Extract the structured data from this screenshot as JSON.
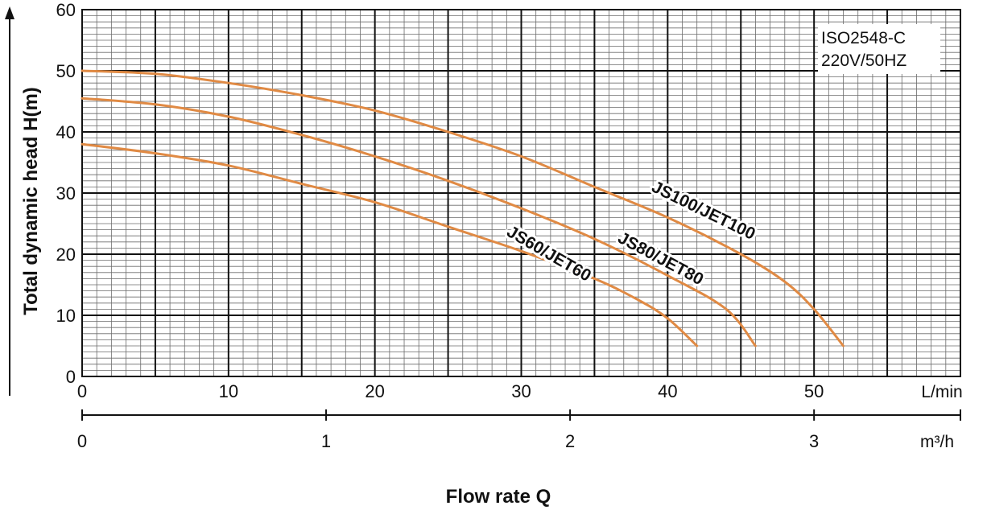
{
  "chart_data": {
    "type": "line",
    "note_lines": [
      "ISO2548-C",
      "220V/50HZ"
    ],
    "ylabel": "Total dynamic head H(m)",
    "xlabel": "Flow rate Q",
    "x_unit": "L/min",
    "x2_unit": "m³/h",
    "xlim": [
      0,
      60
    ],
    "ylim": [
      0,
      60
    ],
    "grid": true,
    "x_ticks": [
      0,
      10,
      20,
      30,
      40,
      50
    ],
    "y_ticks": [
      0,
      10,
      20,
      30,
      40,
      50,
      60
    ],
    "x2_ticks": [
      0,
      1,
      2,
      3
    ],
    "series": [
      {
        "name": "JS60/JET60",
        "color": "#e08a44",
        "x": [
          0,
          5,
          10,
          15,
          20,
          25,
          30,
          35,
          38,
          40,
          42
        ],
        "y": [
          38,
          36.5,
          34.5,
          31.5,
          28.5,
          24.5,
          20.5,
          16,
          12.5,
          9.5,
          5
        ]
      },
      {
        "name": "JS80/JET80",
        "color": "#e08a44",
        "x": [
          0,
          5,
          10,
          15,
          20,
          25,
          30,
          35,
          40,
          44,
          46
        ],
        "y": [
          45.5,
          44.5,
          42.5,
          39.5,
          36,
          32,
          27.5,
          22.5,
          16.5,
          11,
          5
        ]
      },
      {
        "name": "JS100/JET100",
        "color": "#e08a44",
        "x": [
          0,
          5,
          10,
          15,
          20,
          25,
          30,
          35,
          40,
          45,
          48,
          50,
          52
        ],
        "y": [
          50,
          49.5,
          48,
          46,
          43.5,
          40,
          36,
          31,
          26,
          20,
          15.5,
          11,
          5
        ]
      }
    ]
  }
}
